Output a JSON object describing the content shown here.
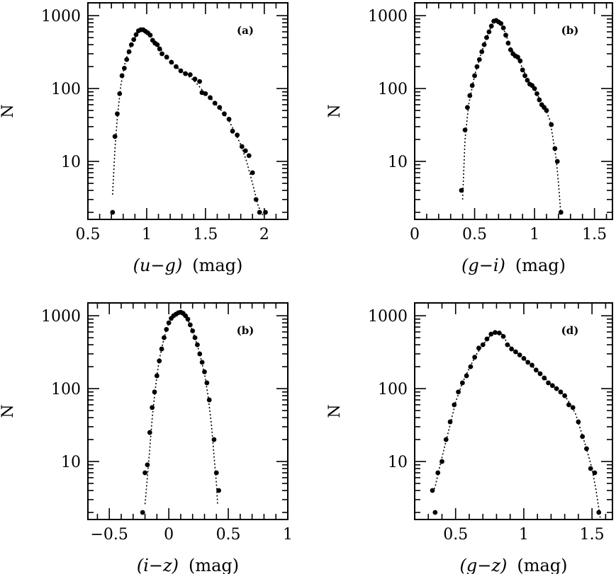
{
  "chart_data": [
    {
      "type": "scatter",
      "tag": "(a)",
      "xlabel_var": "(u−g)",
      "xlabel_unit": "(mag)",
      "ylabel": "N",
      "xlim": [
        0.5,
        2.2
      ],
      "ylim": [
        1.6,
        1500
      ],
      "yscale": "log",
      "xticks": [
        "0.5",
        "1",
        "1.5",
        "2"
      ],
      "xtick_values": [
        0.5,
        1,
        1.5,
        2
      ],
      "yticks": [
        "10",
        "100",
        "1000"
      ],
      "ytick_values": [
        10,
        100,
        1000
      ],
      "points": [
        [
          0.71,
          2
        ],
        [
          0.73,
          22
        ],
        [
          0.75,
          45
        ],
        [
          0.77,
          85
        ],
        [
          0.79,
          150
        ],
        [
          0.81,
          190
        ],
        [
          0.83,
          250
        ],
        [
          0.85,
          320
        ],
        [
          0.87,
          400
        ],
        [
          0.89,
          470
        ],
        [
          0.91,
          550
        ],
        [
          0.93,
          620
        ],
        [
          0.95,
          640
        ],
        [
          0.97,
          640
        ],
        [
          0.99,
          610
        ],
        [
          1.01,
          580
        ],
        [
          1.03,
          540
        ],
        [
          1.05,
          460
        ],
        [
          1.07,
          420
        ],
        [
          1.09,
          400
        ],
        [
          1.11,
          350
        ],
        [
          1.13,
          300
        ],
        [
          1.17,
          270
        ],
        [
          1.21,
          230
        ],
        [
          1.25,
          200
        ],
        [
          1.29,
          175
        ],
        [
          1.33,
          160
        ],
        [
          1.37,
          155
        ],
        [
          1.41,
          135
        ],
        [
          1.45,
          125
        ],
        [
          1.47,
          88
        ],
        [
          1.5,
          85
        ],
        [
          1.54,
          75
        ],
        [
          1.58,
          63
        ],
        [
          1.62,
          55
        ],
        [
          1.66,
          45
        ],
        [
          1.7,
          38
        ],
        [
          1.73,
          26
        ],
        [
          1.77,
          23
        ],
        [
          1.81,
          16
        ],
        [
          1.84,
          14
        ],
        [
          1.87,
          12
        ],
        [
          1.9,
          7
        ],
        [
          1.93,
          3
        ],
        [
          1.96,
          2
        ],
        [
          2.01,
          2
        ]
      ],
      "curve": [
        [
          0.71,
          3.5
        ],
        [
          0.73,
          15
        ],
        [
          0.75,
          40
        ],
        [
          0.78,
          110
        ],
        [
          0.82,
          240
        ],
        [
          0.86,
          370
        ],
        [
          0.9,
          500
        ],
        [
          0.94,
          600
        ],
        [
          0.97,
          640
        ],
        [
          1.0,
          610
        ],
        [
          1.05,
          480
        ],
        [
          1.1,
          380
        ],
        [
          1.15,
          300
        ],
        [
          1.2,
          240
        ],
        [
          1.25,
          200
        ],
        [
          1.3,
          170
        ],
        [
          1.35,
          150
        ],
        [
          1.4,
          130
        ],
        [
          1.45,
          105
        ],
        [
          1.5,
          85
        ],
        [
          1.55,
          72
        ],
        [
          1.6,
          58
        ],
        [
          1.65,
          47
        ],
        [
          1.7,
          36
        ],
        [
          1.75,
          25
        ],
        [
          1.8,
          17
        ],
        [
          1.85,
          10
        ],
        [
          1.9,
          5
        ],
        [
          1.95,
          2.4
        ],
        [
          2.0,
          1.7
        ]
      ]
    },
    {
      "type": "scatter",
      "tag": "(b)",
      "xlabel_var": "(g−i)",
      "xlabel_unit": "(mag)",
      "ylabel": "N",
      "xlim": [
        0,
        1.65
      ],
      "ylim": [
        1.6,
        1500
      ],
      "yscale": "log",
      "xticks": [
        "0",
        "0.5",
        "1",
        "1.5"
      ],
      "xtick_values": [
        0,
        0.5,
        1,
        1.5
      ],
      "yticks": [
        "10",
        "100",
        "1000"
      ],
      "ytick_values": [
        10,
        100,
        1000
      ],
      "points": [
        [
          0.39,
          4
        ],
        [
          0.42,
          27
        ],
        [
          0.44,
          55
        ],
        [
          0.46,
          80
        ],
        [
          0.48,
          110
        ],
        [
          0.5,
          150
        ],
        [
          0.52,
          200
        ],
        [
          0.54,
          250
        ],
        [
          0.56,
          320
        ],
        [
          0.58,
          400
        ],
        [
          0.6,
          500
        ],
        [
          0.62,
          600
        ],
        [
          0.64,
          720
        ],
        [
          0.66,
          840
        ],
        [
          0.68,
          860
        ],
        [
          0.7,
          820
        ],
        [
          0.72,
          780
        ],
        [
          0.74,
          680
        ],
        [
          0.76,
          540
        ],
        [
          0.78,
          420
        ],
        [
          0.8,
          340
        ],
        [
          0.82,
          300
        ],
        [
          0.84,
          280
        ],
        [
          0.86,
          270
        ],
        [
          0.88,
          240
        ],
        [
          0.9,
          180
        ],
        [
          0.92,
          150
        ],
        [
          0.94,
          130
        ],
        [
          0.96,
          115
        ],
        [
          0.98,
          110
        ],
        [
          1.0,
          100
        ],
        [
          1.02,
          85
        ],
        [
          1.04,
          70
        ],
        [
          1.06,
          60
        ],
        [
          1.08,
          55
        ],
        [
          1.1,
          50
        ],
        [
          1.14,
          32
        ],
        [
          1.17,
          15
        ],
        [
          1.19,
          10
        ],
        [
          1.22,
          2
        ]
      ],
      "curve": [
        [
          0.4,
          3
        ],
        [
          0.42,
          20
        ],
        [
          0.45,
          60
        ],
        [
          0.5,
          150
        ],
        [
          0.55,
          290
        ],
        [
          0.6,
          500
        ],
        [
          0.65,
          780
        ],
        [
          0.68,
          860
        ],
        [
          0.72,
          780
        ],
        [
          0.76,
          560
        ],
        [
          0.8,
          360
        ],
        [
          0.85,
          280
        ],
        [
          0.9,
          190
        ],
        [
          0.95,
          125
        ],
        [
          1.0,
          98
        ],
        [
          1.05,
          68
        ],
        [
          1.1,
          48
        ],
        [
          1.13,
          36
        ],
        [
          1.16,
          18
        ],
        [
          1.18,
          11
        ],
        [
          1.2,
          5
        ],
        [
          1.22,
          1.8
        ]
      ]
    },
    {
      "type": "scatter",
      "tag": "(b)",
      "xlabel_var": "(i−z)",
      "xlabel_unit": "(mag)",
      "ylabel": "N",
      "xlim": [
        -0.68,
        1
      ],
      "ylim": [
        1.6,
        1500
      ],
      "yscale": "log",
      "xticks": [
        "−0.5",
        "0",
        "0.5",
        "1"
      ],
      "xtick_values": [
        -0.5,
        0,
        0.5,
        1
      ],
      "yticks": [
        "10",
        "100",
        "1000"
      ],
      "ytick_values": [
        10,
        100,
        1000
      ],
      "points": [
        [
          -0.22,
          2
        ],
        [
          -0.2,
          7
        ],
        [
          -0.18,
          9
        ],
        [
          -0.16,
          25
        ],
        [
          -0.14,
          55
        ],
        [
          -0.12,
          90
        ],
        [
          -0.1,
          150
        ],
        [
          -0.08,
          240
        ],
        [
          -0.06,
          350
        ],
        [
          -0.04,
          500
        ],
        [
          -0.02,
          650
        ],
        [
          0.0,
          800
        ],
        [
          0.02,
          920
        ],
        [
          0.04,
          1000
        ],
        [
          0.06,
          1050
        ],
        [
          0.08,
          1100
        ],
        [
          0.1,
          1120
        ],
        [
          0.12,
          1080
        ],
        [
          0.14,
          1000
        ],
        [
          0.16,
          900
        ],
        [
          0.18,
          750
        ],
        [
          0.2,
          620
        ],
        [
          0.22,
          500
        ],
        [
          0.24,
          400
        ],
        [
          0.26,
          300
        ],
        [
          0.28,
          230
        ],
        [
          0.3,
          170
        ],
        [
          0.32,
          120
        ],
        [
          0.34,
          70
        ],
        [
          0.38,
          20
        ],
        [
          0.4,
          7
        ],
        [
          0.42,
          4
        ]
      ],
      "curve": [
        [
          -0.2,
          2.6
        ],
        [
          -0.18,
          6
        ],
        [
          -0.16,
          15
        ],
        [
          -0.14,
          38
        ],
        [
          -0.12,
          80
        ],
        [
          -0.1,
          150
        ],
        [
          -0.08,
          250
        ],
        [
          -0.05,
          420
        ],
        [
          -0.02,
          660
        ],
        [
          0.02,
          930
        ],
        [
          0.06,
          1060
        ],
        [
          0.1,
          1120
        ],
        [
          0.14,
          1000
        ],
        [
          0.18,
          750
        ],
        [
          0.22,
          500
        ],
        [
          0.26,
          300
        ],
        [
          0.3,
          160
        ],
        [
          0.33,
          80
        ],
        [
          0.36,
          30
        ],
        [
          0.38,
          12
        ],
        [
          0.4,
          5
        ],
        [
          0.41,
          2.6
        ]
      ]
    },
    {
      "type": "scatter",
      "tag": "(d)",
      "xlabel_var": "(g−z)",
      "xlabel_unit": "(mag)",
      "ylabel": "N",
      "xlim": [
        0.2,
        1.65
      ],
      "ylim": [
        1.6,
        1500
      ],
      "yscale": "log",
      "xticks": [
        "0.5",
        "1",
        "1.5"
      ],
      "xtick_values": [
        0.5,
        1,
        1.5
      ],
      "yticks": [
        "10",
        "100",
        "1000"
      ],
      "ytick_values": [
        10,
        100,
        1000
      ],
      "points": [
        [
          0.33,
          4
        ],
        [
          0.35,
          2
        ],
        [
          0.37,
          7
        ],
        [
          0.4,
          10
        ],
        [
          0.43,
          20
        ],
        [
          0.46,
          35
        ],
        [
          0.49,
          60
        ],
        [
          0.52,
          90
        ],
        [
          0.55,
          120
        ],
        [
          0.58,
          150
        ],
        [
          0.61,
          200
        ],
        [
          0.64,
          270
        ],
        [
          0.67,
          360
        ],
        [
          0.7,
          400
        ],
        [
          0.73,
          480
        ],
        [
          0.76,
          560
        ],
        [
          0.79,
          590
        ],
        [
          0.82,
          580
        ],
        [
          0.85,
          520
        ],
        [
          0.88,
          400
        ],
        [
          0.91,
          350
        ],
        [
          0.94,
          320
        ],
        [
          0.97,
          290
        ],
        [
          1.0,
          260
        ],
        [
          1.03,
          230
        ],
        [
          1.06,
          210
        ],
        [
          1.09,
          180
        ],
        [
          1.12,
          160
        ],
        [
          1.15,
          140
        ],
        [
          1.18,
          120
        ],
        [
          1.21,
          110
        ],
        [
          1.24,
          100
        ],
        [
          1.27,
          90
        ],
        [
          1.3,
          80
        ],
        [
          1.33,
          60
        ],
        [
          1.36,
          55
        ],
        [
          1.4,
          35
        ],
        [
          1.43,
          22
        ],
        [
          1.46,
          15
        ],
        [
          1.49,
          8
        ],
        [
          1.52,
          7
        ],
        [
          1.55,
          2
        ]
      ],
      "curve": [
        [
          0.33,
          3.8
        ],
        [
          0.35,
          4.5
        ],
        [
          0.38,
          8
        ],
        [
          0.42,
          16
        ],
        [
          0.46,
          32
        ],
        [
          0.5,
          65
        ],
        [
          0.55,
          120
        ],
        [
          0.6,
          190
        ],
        [
          0.65,
          290
        ],
        [
          0.7,
          400
        ],
        [
          0.75,
          520
        ],
        [
          0.8,
          590
        ],
        [
          0.84,
          560
        ],
        [
          0.88,
          420
        ],
        [
          0.92,
          340
        ],
        [
          0.97,
          290
        ],
        [
          1.03,
          230
        ],
        [
          1.1,
          175
        ],
        [
          1.17,
          130
        ],
        [
          1.24,
          100
        ],
        [
          1.3,
          80
        ],
        [
          1.34,
          62
        ],
        [
          1.38,
          45
        ],
        [
          1.42,
          26
        ],
        [
          1.46,
          15
        ],
        [
          1.5,
          8
        ],
        [
          1.53,
          4
        ],
        [
          1.56,
          1.7
        ]
      ]
    }
  ]
}
